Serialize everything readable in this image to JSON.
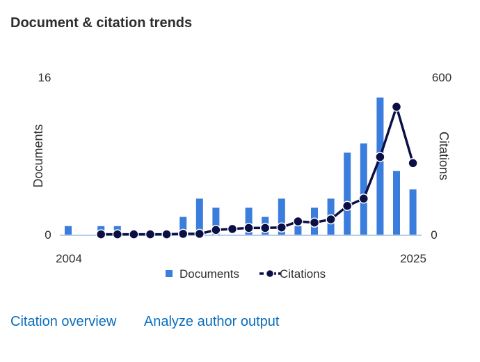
{
  "card": {
    "title": "Document & citation trends"
  },
  "links": {
    "citation_overview": "Citation overview",
    "analyze_author_output": "Analyze author output"
  },
  "colors": {
    "documents": "#3b7ddd",
    "citations": "#0b0f45",
    "baseline": "#b8cce8"
  },
  "chart_data": {
    "type": "bar+line",
    "title": "Document & citation trends",
    "x_start_label": "2004",
    "x_end_label": "2025",
    "years": [
      2004,
      2005,
      2006,
      2007,
      2008,
      2009,
      2010,
      2011,
      2012,
      2013,
      2014,
      2015,
      2016,
      2017,
      2018,
      2019,
      2020,
      2021,
      2022,
      2023,
      2024,
      2025
    ],
    "y_left": {
      "label": "Documents",
      "min": 0,
      "max": 16,
      "min_label": "0",
      "max_label": "16"
    },
    "y_right": {
      "label": "Citations",
      "min": 0,
      "max": 600,
      "min_label": "0",
      "max_label": "600"
    },
    "series": [
      {
        "name": "Documents",
        "type": "bar",
        "axis": "left",
        "values": [
          1,
          0,
          1,
          1,
          0,
          0,
          0,
          2,
          4,
          3,
          0,
          3,
          2,
          4,
          1,
          3,
          4,
          9,
          10,
          15,
          7,
          5
        ]
      },
      {
        "name": "Citations",
        "type": "line",
        "axis": "right",
        "values": [
          null,
          null,
          4,
          4,
          4,
          4,
          4,
          6,
          6,
          22,
          26,
          30,
          30,
          32,
          57,
          52,
          65,
          120,
          150,
          320,
          525,
          295
        ]
      }
    ],
    "legend": {
      "position": "bottom",
      "documents": "Documents",
      "citations": "Citations"
    }
  }
}
